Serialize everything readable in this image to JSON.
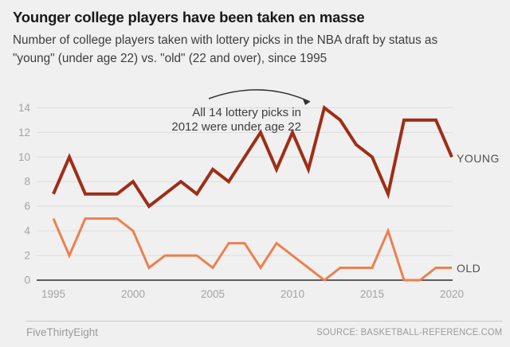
{
  "header": {
    "title": "Younger college players have been taken en masse",
    "subtitle": "Number of college players taken with lottery picks in the NBA draft by status as \"young\" (under age 22) vs. \"old\" (22 and over), since 1995"
  },
  "chart_data": {
    "type": "line",
    "x": [
      1995,
      1996,
      1997,
      1998,
      1999,
      2000,
      2001,
      2002,
      2003,
      2004,
      2005,
      2006,
      2007,
      2008,
      2009,
      2010,
      2011,
      2012,
      2013,
      2014,
      2015,
      2016,
      2017,
      2018,
      2019,
      2020
    ],
    "series": [
      {
        "name": "young",
        "label": "YOUNG",
        "color": "#9e2e17",
        "stroke_width": 4,
        "values": [
          7,
          10,
          7,
          7,
          7,
          8,
          6,
          7,
          8,
          7,
          9,
          8,
          10,
          12,
          9,
          12,
          9,
          14,
          13,
          11,
          10,
          7,
          13,
          13,
          13,
          10
        ]
      },
      {
        "name": "old",
        "label": "OLD",
        "color": "#ed804e",
        "stroke_width": 3,
        "values": [
          5,
          2,
          5,
          5,
          5,
          4,
          1,
          2,
          2,
          2,
          1,
          3,
          3,
          1,
          3,
          2,
          1,
          0,
          1,
          1,
          1,
          4,
          0,
          0,
          1,
          1
        ]
      }
    ],
    "ylim": [
      0,
      14
    ],
    "yticks": [
      0,
      2,
      4,
      6,
      8,
      10,
      12,
      14
    ],
    "xticks": [
      1995,
      2000,
      2005,
      2010,
      2015,
      2020
    ],
    "grid": true,
    "legend_position": "end-of-line",
    "annotation": {
      "lines": [
        "All 14 lottery picks in",
        "2012 were under age 22"
      ],
      "target_year": 2012,
      "target_value": 14
    }
  },
  "footer": {
    "brand": "FiveThirtyEight",
    "source": "SOURCE: BASKETBALL-REFERENCE.COM"
  }
}
